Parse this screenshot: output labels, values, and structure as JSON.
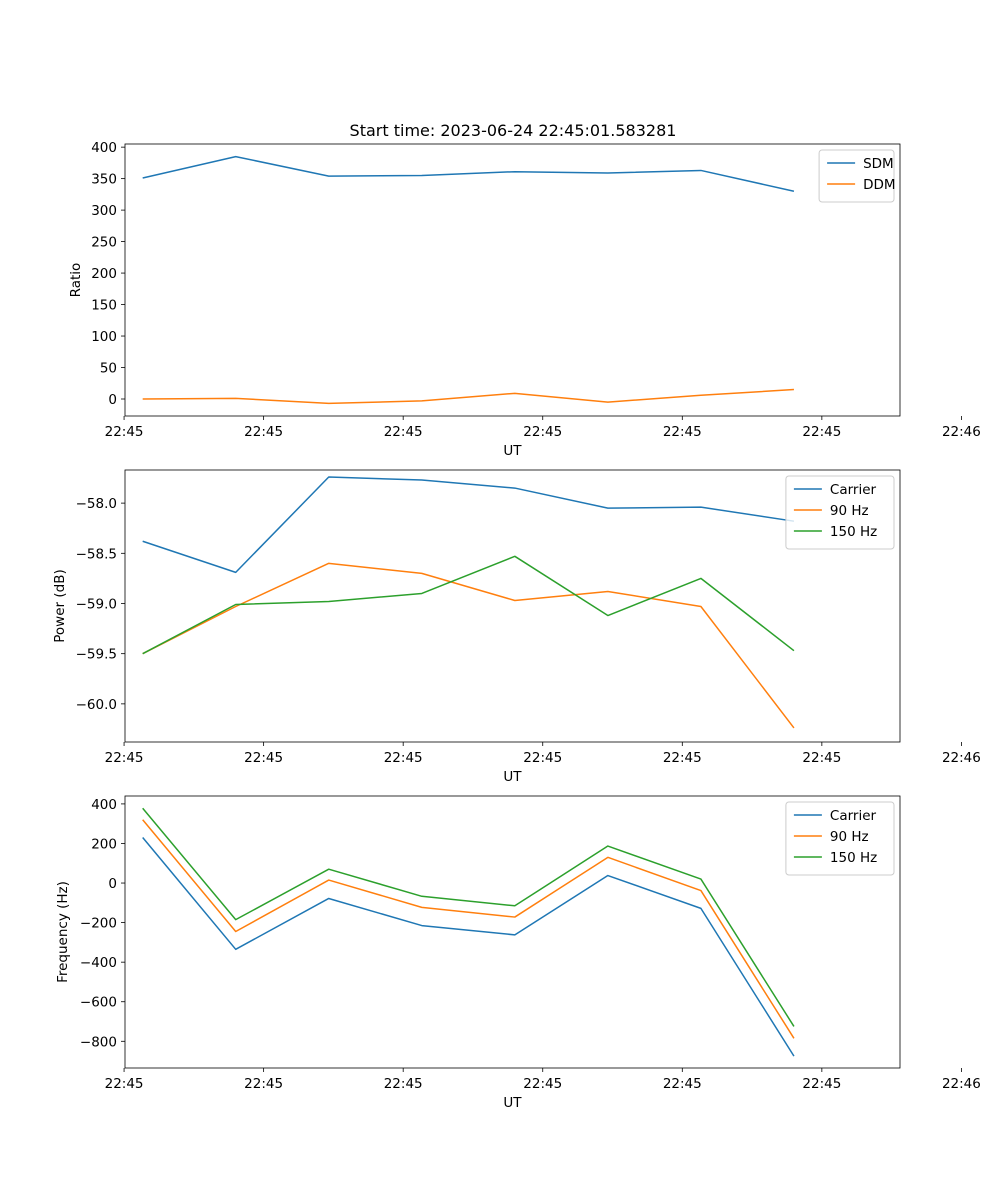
{
  "figure": {
    "title": "Start time: 2023-06-24 22:45:01.583281"
  },
  "chart_data": [
    {
      "type": "line",
      "title": "Start time: 2023-06-24 22:45:01.583281",
      "xlabel": "UT",
      "ylabel": "Ratio",
      "x": [
        1,
        2,
        3,
        4,
        5,
        6,
        7,
        8
      ],
      "xlim": [
        0.81,
        9.14
      ],
      "x_ticks": [
        0.8,
        2.3,
        3.8,
        5.3,
        6.8,
        8.3,
        9.8
      ],
      "x_tick_labels": [
        "22:45",
        "22:45",
        "22:45",
        "22:45",
        "22:45",
        "22:45",
        "22:46"
      ],
      "ylim": [
        -27,
        405
      ],
      "y_ticks": [
        0,
        50,
        100,
        150,
        200,
        250,
        300,
        350,
        400
      ],
      "y_tick_labels": [
        "0",
        "50",
        "100",
        "150",
        "200",
        "250",
        "300",
        "350",
        "400"
      ],
      "grid": false,
      "legend": "top-right",
      "series": [
        {
          "name": "SDM",
          "color": "#1f77b4",
          "values": [
            351,
            385,
            354,
            355,
            361,
            359,
            363,
            330
          ]
        },
        {
          "name": "DDM",
          "color": "#ff7f0e",
          "values": [
            0,
            1,
            -7,
            -3,
            9,
            -5,
            6,
            15
          ]
        }
      ]
    },
    {
      "type": "line",
      "xlabel": "UT",
      "ylabel": "Power (dB)",
      "x": [
        1,
        2,
        3,
        4,
        5,
        6,
        7,
        8
      ],
      "xlim": [
        0.81,
        9.14
      ],
      "x_ticks": [
        0.8,
        2.3,
        3.8,
        5.3,
        6.8,
        8.3,
        9.8
      ],
      "x_tick_labels": [
        "22:45",
        "22:45",
        "22:45",
        "22:45",
        "22:45",
        "22:45",
        "22:46"
      ],
      "ylim": [
        -60.38,
        -57.67
      ],
      "y_ticks": [
        -60.0,
        -59.5,
        -59.0,
        -58.5,
        -58.0
      ],
      "y_tick_labels": [
        "−60.0",
        "−59.5",
        "−59.0",
        "−58.5",
        "−58.0"
      ],
      "grid": false,
      "legend": "top-right",
      "series": [
        {
          "name": "Carrier",
          "color": "#1f77b4",
          "values": [
            -58.38,
            -58.69,
            -57.74,
            -57.77,
            -57.85,
            -58.05,
            -58.04,
            -58.18
          ]
        },
        {
          "name": "90 Hz",
          "color": "#ff7f0e",
          "values": [
            -59.5,
            -59.03,
            -58.6,
            -58.7,
            -58.97,
            -58.88,
            -59.03,
            -60.24
          ]
        },
        {
          "name": "150 Hz",
          "color": "#2ca02c",
          "values": [
            -59.5,
            -59.01,
            -58.98,
            -58.9,
            -58.53,
            -59.12,
            -58.75,
            -59.47
          ]
        }
      ]
    },
    {
      "type": "line",
      "xlabel": "UT",
      "ylabel": "Frequency (Hz)",
      "x": [
        1,
        2,
        3,
        4,
        5,
        6,
        7,
        8
      ],
      "xlim": [
        0.81,
        9.14
      ],
      "x_ticks": [
        0.8,
        2.3,
        3.8,
        5.3,
        6.8,
        8.3,
        9.8
      ],
      "x_tick_labels": [
        "22:45",
        "22:45",
        "22:45",
        "22:45",
        "22:45",
        "22:45",
        "22:46"
      ],
      "ylim": [
        -935,
        440
      ],
      "y_ticks": [
        -800,
        -600,
        -400,
        -200,
        0,
        200,
        400
      ],
      "y_tick_labels": [
        "−800",
        "−600",
        "−400",
        "−200",
        "0",
        "200",
        "400"
      ],
      "grid": false,
      "legend": "top-right",
      "series": [
        {
          "name": "Carrier",
          "color": "#1f77b4",
          "values": [
            230,
            -335,
            -78,
            -215,
            -262,
            38,
            -128,
            -875
          ]
        },
        {
          "name": "90 Hz",
          "color": "#ff7f0e",
          "values": [
            320,
            -245,
            15,
            -123,
            -172,
            130,
            -38,
            -785
          ]
        },
        {
          "name": "150 Hz",
          "color": "#2ca02c",
          "values": [
            378,
            -185,
            70,
            -67,
            -115,
            187,
            20,
            -725
          ]
        }
      ]
    }
  ]
}
